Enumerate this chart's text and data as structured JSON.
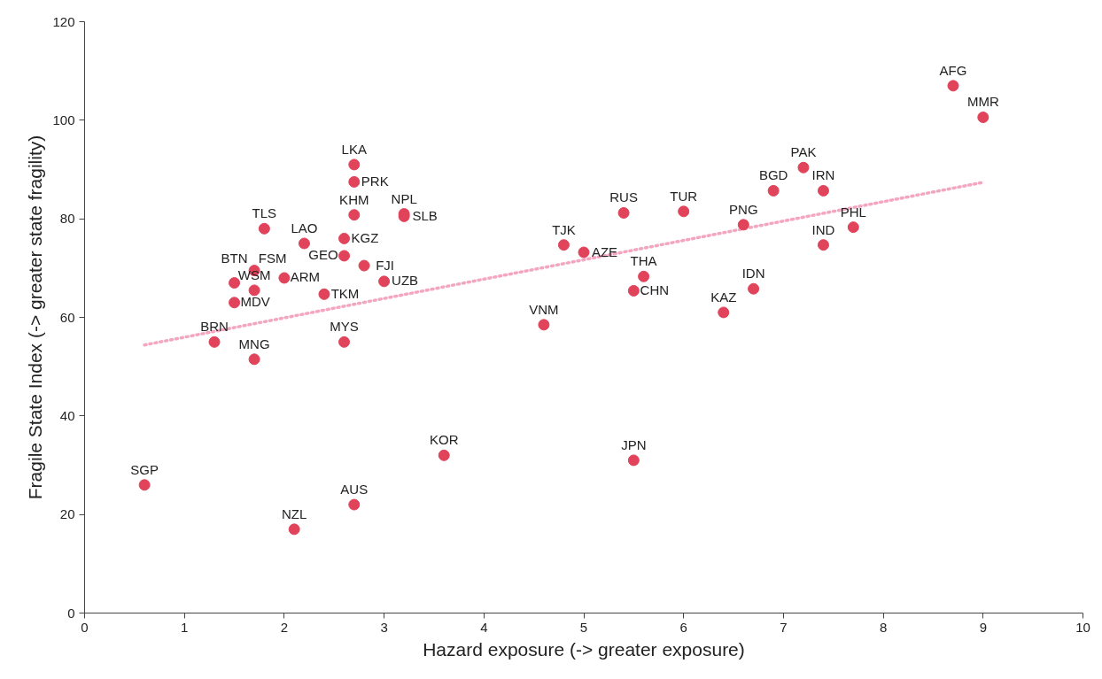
{
  "chart_data": {
    "type": "scatter",
    "xlabel": "Hazard exposure (-> greater exposure)",
    "ylabel": "Fragile State Index (-> greater state fragility)",
    "xlim": [
      0,
      10
    ],
    "ylim": [
      0,
      120
    ],
    "xticks": [
      0,
      1,
      2,
      3,
      4,
      5,
      6,
      7,
      8,
      9,
      10
    ],
    "yticks": [
      0,
      20,
      40,
      60,
      80,
      100,
      120
    ],
    "grid": false,
    "marker": "circle",
    "series": [
      {
        "color": "#e0435a",
        "x": [
          0.6,
          2.1,
          2.7,
          3.6,
          5.5,
          1.3,
          1.7,
          2.6,
          1.5,
          1.7,
          1.5,
          1.7,
          1.8,
          2.2,
          2.0,
          2.4,
          2.7,
          2.7,
          2.7,
          2.6,
          2.6,
          2.8,
          3.0,
          3.2,
          3.2,
          4.8,
          5.0,
          5.4,
          6.0,
          5.6,
          5.5,
          4.6,
          6.6,
          6.4,
          6.7,
          6.9,
          7.4,
          7.4,
          7.7,
          7.2,
          8.7,
          9.0
        ],
        "values": [
          26,
          17,
          22,
          32,
          31,
          55,
          51.5,
          55,
          63,
          65.5,
          67,
          69.5,
          78,
          75,
          68,
          64.7,
          91,
          87.5,
          80.8,
          76,
          72.5,
          70.5,
          67.3,
          81,
          80.5,
          74.7,
          73.2,
          81.2,
          81.5,
          68.3,
          65.4,
          58.5,
          78.8,
          61,
          65.8,
          85.7,
          85.7,
          74.7,
          78.3,
          90.4,
          107,
          100.6
        ]
      },
      {
        "type": "line",
        "color": "#f4a6c0",
        "line_style": "dotted",
        "marker": "none",
        "x": [
          0.6,
          9.0
        ],
        "values": [
          54.4,
          87.4
        ]
      }
    ],
    "annotations": [
      {
        "text": "SGP",
        "x": 0.6,
        "y": 26
      },
      {
        "text": "NZL",
        "x": 2.1,
        "y": 17
      },
      {
        "text": "AUS",
        "x": 2.7,
        "y": 22
      },
      {
        "text": "KOR",
        "x": 3.6,
        "y": 32
      },
      {
        "text": "JPN",
        "x": 5.5,
        "y": 31
      },
      {
        "text": "BRN",
        "x": 1.3,
        "y": 55
      },
      {
        "text": "MNG",
        "x": 1.7,
        "y": 51.5
      },
      {
        "text": "MYS",
        "x": 2.6,
        "y": 55
      },
      {
        "text": "MDV",
        "x": 1.5,
        "y": 63
      },
      {
        "text": "WSM",
        "x": 1.7,
        "y": 65.5
      },
      {
        "text": "BTN",
        "x": 1.5,
        "y": 67
      },
      {
        "text": "FSM",
        "x": 1.7,
        "y": 69.5
      },
      {
        "text": "TLS",
        "x": 1.8,
        "y": 78
      },
      {
        "text": "LAO",
        "x": 2.2,
        "y": 75
      },
      {
        "text": "ARM",
        "x": 2.0,
        "y": 68
      },
      {
        "text": "TKM",
        "x": 2.4,
        "y": 64.7
      },
      {
        "text": "LKA",
        "x": 2.7,
        "y": 91
      },
      {
        "text": "PRK",
        "x": 2.7,
        "y": 87.5
      },
      {
        "text": "KHM",
        "x": 2.7,
        "y": 80.8
      },
      {
        "text": "KGZ",
        "x": 2.6,
        "y": 76
      },
      {
        "text": "GEO",
        "x": 2.6,
        "y": 72.5
      },
      {
        "text": "FJI",
        "x": 2.8,
        "y": 70.5
      },
      {
        "text": "UZB",
        "x": 3.0,
        "y": 67.3
      },
      {
        "text": "NPL",
        "x": 3.2,
        "y": 81
      },
      {
        "text": "SLB",
        "x": 3.2,
        "y": 80.5
      },
      {
        "text": "TJK",
        "x": 4.8,
        "y": 74.7
      },
      {
        "text": "AZE",
        "x": 5.0,
        "y": 73.2
      },
      {
        "text": "RUS",
        "x": 5.4,
        "y": 81.2
      },
      {
        "text": "TUR",
        "x": 6.0,
        "y": 81.5
      },
      {
        "text": "THA",
        "x": 5.6,
        "y": 68.3
      },
      {
        "text": "CHN",
        "x": 5.5,
        "y": 65.4
      },
      {
        "text": "VNM",
        "x": 4.6,
        "y": 58.5
      },
      {
        "text": "PNG",
        "x": 6.6,
        "y": 78.8
      },
      {
        "text": "KAZ",
        "x": 6.4,
        "y": 61
      },
      {
        "text": "IDN",
        "x": 6.7,
        "y": 65.8
      },
      {
        "text": "BGD",
        "x": 6.9,
        "y": 85.7
      },
      {
        "text": "IRN",
        "x": 7.4,
        "y": 85.7
      },
      {
        "text": "IND",
        "x": 7.4,
        "y": 74.7
      },
      {
        "text": "PHL",
        "x": 7.7,
        "y": 78.3
      },
      {
        "text": "PAK",
        "x": 7.2,
        "y": 90.4
      },
      {
        "text": "AFG",
        "x": 8.7,
        "y": 107
      },
      {
        "text": "MMR",
        "x": 9.0,
        "y": 100.6
      }
    ]
  }
}
